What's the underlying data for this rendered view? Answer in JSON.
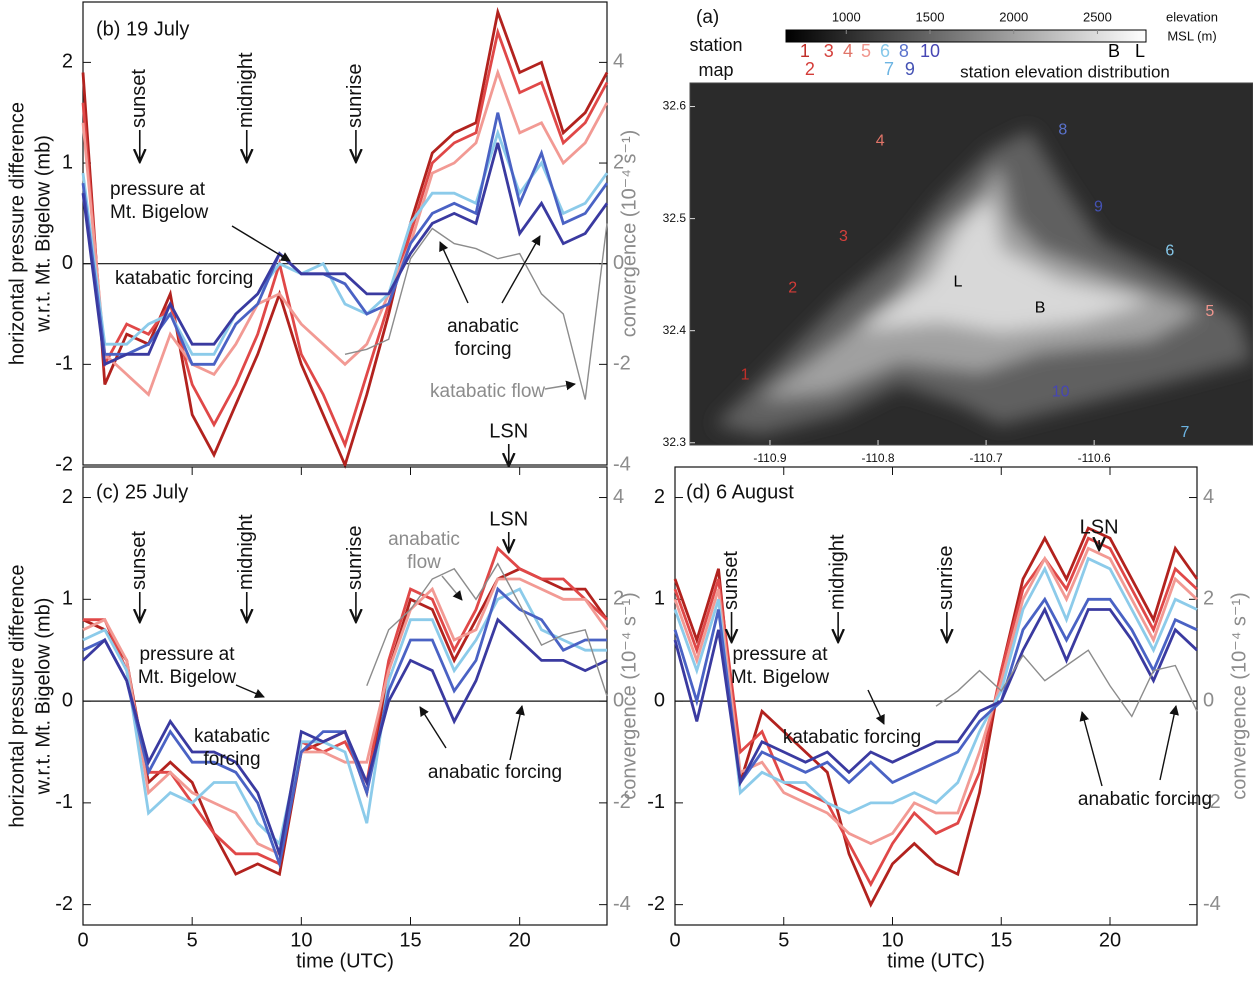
{
  "chart_data": [
    {
      "type": "map",
      "title": "(a)",
      "subtitle": [
        "station",
        "map"
      ],
      "xlim": [
        -110.974,
        -110.453
      ],
      "ylim": [
        32.298,
        32.621
      ],
      "xticks": [
        -110.9,
        -110.8,
        -110.7,
        -110.6
      ],
      "yticks": [
        32.3,
        32.4,
        32.5,
        32.6
      ],
      "colorbar": {
        "lim": [
          640,
          2790
        ],
        "ticks": [
          1000,
          1500,
          2000,
          2500
        ],
        "label": [
          "elevation",
          "MSL (m)"
        ]
      },
      "distribution_label": "station elevation distribution",
      "stations": [
        {
          "label": "1",
          "lon": -110.923,
          "lat": 32.36,
          "elevation": 753,
          "color": "#c0302a"
        },
        {
          "label": "2",
          "lon": -110.879,
          "lat": 32.438,
          "elevation": 783,
          "color": "#d43c38"
        },
        {
          "label": "3",
          "lon": -110.832,
          "lat": 32.484,
          "elevation": 895,
          "color": "#d4403c"
        },
        {
          "label": "4",
          "lon": -110.798,
          "lat": 32.569,
          "elevation": 1010,
          "color": "#e07468"
        },
        {
          "label": "5",
          "lon": -110.493,
          "lat": 32.417,
          "elevation": 1118,
          "color": "#f0968e"
        },
        {
          "label": "6",
          "lon": -110.53,
          "lat": 32.471,
          "elevation": 1231,
          "color": "#86c8ea"
        },
        {
          "label": "7",
          "lon": -110.516,
          "lat": 32.309,
          "elevation": 1255,
          "color": "#6cb4e2"
        },
        {
          "label": "8",
          "lon": -110.629,
          "lat": 32.579,
          "elevation": 1344,
          "color": "#5a72cc"
        },
        {
          "label": "9",
          "lon": -110.596,
          "lat": 32.51,
          "elevation": 1380,
          "color": "#4452b4"
        },
        {
          "label": "10",
          "lon": -110.631,
          "lat": 32.345,
          "elevation": 1500,
          "color": "#4646b4"
        },
        {
          "label": "B",
          "lon": -110.65,
          "lat": 32.42,
          "elevation": 2599,
          "color": "#000000"
        },
        {
          "label": "L",
          "lon": -110.726,
          "lat": 32.443,
          "elevation": 2754,
          "color": "#000000"
        }
      ]
    },
    {
      "type": "line",
      "title": "(b) 19 July",
      "y_label": [
        "horizontal pressure difference",
        "w.r.t. Mt. Bigelow (mb)"
      ],
      "y2_label": "convergence (10⁻⁴ s⁻¹)",
      "xlim": [
        0,
        24
      ],
      "ylim": [
        -2,
        2.6
      ],
      "yticks": [
        -2,
        -1,
        0,
        1,
        2
      ],
      "y2lim": [
        -4,
        5.2
      ],
      "y2ticks": [
        -4,
        -2,
        0,
        2,
        4
      ],
      "x": [
        0,
        1,
        2,
        3,
        4,
        5,
        6,
        7,
        8,
        9,
        10,
        11,
        12,
        13,
        14,
        15,
        16,
        17,
        18,
        19,
        20,
        21,
        22,
        23,
        24
      ],
      "series": [
        {
          "color": "#b2221e",
          "values": [
            1.9,
            -1.2,
            -0.7,
            -0.8,
            -0.3,
            -1.5,
            -1.9,
            -1.4,
            -0.9,
            -0.3,
            -1.0,
            -1.5,
            -2.0,
            -1.3,
            -0.5,
            0.4,
            1.1,
            1.3,
            1.4,
            2.5,
            1.9,
            2.0,
            1.3,
            1.5,
            1.9
          ]
        },
        {
          "color": "#e04848",
          "values": [
            1.6,
            -1.0,
            -0.6,
            -0.7,
            -0.4,
            -1.2,
            -1.6,
            -1.2,
            -0.7,
            0.0,
            -0.9,
            -1.3,
            -1.8,
            -1.1,
            -0.4,
            0.3,
            1.0,
            1.2,
            1.3,
            2.3,
            1.7,
            1.8,
            1.2,
            1.4,
            1.8
          ]
        },
        {
          "color": "#f29a94",
          "values": [
            1.4,
            -0.9,
            -1.1,
            -1.3,
            -0.7,
            -1.0,
            -1.1,
            -0.8,
            -0.4,
            -0.3,
            -0.6,
            -0.8,
            -1.0,
            -0.8,
            -0.3,
            0.2,
            0.9,
            1.0,
            1.2,
            1.9,
            1.3,
            1.4,
            1.0,
            1.2,
            1.6
          ]
        },
        {
          "color": "#8ccbea",
          "values": [
            0.9,
            -0.8,
            -0.8,
            -0.6,
            -0.5,
            -0.9,
            -0.9,
            -0.5,
            -0.3,
            0.0,
            -0.1,
            0.0,
            -0.4,
            -0.5,
            -0.3,
            0.4,
            0.7,
            0.7,
            0.6,
            1.3,
            0.7,
            1.0,
            0.5,
            0.6,
            0.9
          ]
        },
        {
          "color": "#4a62c4",
          "values": [
            0.8,
            -0.9,
            -0.9,
            -0.8,
            -0.5,
            -1.0,
            -1.0,
            -0.6,
            -0.4,
            0.1,
            -0.1,
            -0.1,
            -0.2,
            -0.5,
            -0.4,
            0.2,
            0.5,
            0.6,
            0.5,
            1.5,
            0.6,
            1.1,
            0.4,
            0.5,
            0.8
          ]
        },
        {
          "color": "#3a3aa0",
          "values": [
            0.7,
            -1.0,
            -0.9,
            -0.9,
            -0.4,
            -0.8,
            -0.8,
            -0.5,
            -0.3,
            0.1,
            -0.1,
            -0.1,
            -0.1,
            -0.3,
            -0.3,
            0.1,
            0.4,
            0.5,
            0.4,
            1.2,
            0.3,
            0.6,
            0.2,
            0.3,
            0.6
          ]
        },
        {
          "color": "#8c8c8c",
          "axis": "y2",
          "values": [
            null,
            null,
            null,
            null,
            null,
            null,
            null,
            null,
            null,
            null,
            null,
            null,
            -1.8,
            -1.7,
            -1.5,
            0.1,
            0.7,
            0.4,
            0.3,
            0.1,
            0.2,
            -0.6,
            -1.0,
            -2.7,
            0.8
          ]
        }
      ],
      "events": [
        {
          "label": "sunset",
          "x": 2.6,
          "vertical": true
        },
        {
          "label": "midnight",
          "x": 7.5,
          "vertical": true
        },
        {
          "label": "sunrise",
          "x": 12.5,
          "vertical": true
        },
        {
          "label": "LSN",
          "x": 19.5,
          "vertical": false
        }
      ],
      "annotations": [
        {
          "lines": [
            "pressure at",
            "Mt. Bigelow"
          ]
        },
        {
          "lines": [
            "katabatic forcing"
          ]
        },
        {
          "lines": [
            "anabatic",
            "forcing"
          ]
        },
        {
          "lines": [
            "katabatic flow"
          ],
          "color": "#8c8c8c"
        }
      ]
    },
    {
      "type": "line",
      "title": "(c) 25 July",
      "y_label": [
        "horizontal pressure difference",
        "w.r.t. Mt. Bigelow (mb)"
      ],
      "y2_label": "convergence (10⁻⁴ s⁻¹)",
      "x_label": "time (UTC)",
      "xlim": [
        0,
        24
      ],
      "xticks": [
        0,
        5,
        10,
        15,
        20
      ],
      "ylim": [
        -2.2,
        2.3
      ],
      "yticks": [
        -2,
        -1,
        0,
        1,
        2
      ],
      "y2lim": [
        -4.4,
        4.6
      ],
      "y2ticks": [
        -4,
        -2,
        0,
        2,
        4
      ],
      "x": [
        0,
        1,
        2,
        3,
        4,
        5,
        6,
        7,
        8,
        9,
        10,
        11,
        12,
        13,
        14,
        15,
        16,
        17,
        18,
        19,
        20,
        21,
        22,
        23,
        24
      ],
      "series": [
        {
          "color": "#b2221e",
          "values": [
            0.8,
            0.7,
            0.4,
            -0.8,
            -0.6,
            -0.8,
            -1.3,
            -1.7,
            -1.6,
            -1.7,
            -0.5,
            -0.4,
            -0.3,
            -0.9,
            0.3,
            1.0,
            0.9,
            0.4,
            0.8,
            1.2,
            1.3,
            1.2,
            1.1,
            1.1,
            0.8
          ]
        },
        {
          "color": "#e04848",
          "values": [
            0.8,
            0.8,
            0.3,
            -0.7,
            -0.7,
            -1.0,
            -1.3,
            -1.5,
            -1.5,
            -1.6,
            -0.4,
            -0.5,
            -0.4,
            -0.8,
            0.4,
            1.1,
            1.0,
            0.5,
            0.9,
            1.5,
            1.3,
            1.2,
            1.2,
            1.0,
            0.8
          ]
        },
        {
          "color": "#f29a94",
          "values": [
            0.7,
            0.8,
            0.4,
            -0.9,
            -0.7,
            -0.9,
            -1.0,
            -1.1,
            -1.4,
            -1.5,
            -0.5,
            -0.5,
            -0.6,
            -0.6,
            0.3,
            0.9,
            1.1,
            0.6,
            0.7,
            1.2,
            1.2,
            1.1,
            1.0,
            1.0,
            0.7
          ]
        },
        {
          "color": "#8ccbea",
          "values": [
            0.6,
            0.7,
            0.3,
            -1.1,
            -0.9,
            -1.0,
            -0.8,
            -0.8,
            -1.2,
            -1.4,
            -0.4,
            -0.4,
            -0.5,
            -1.2,
            0.2,
            0.8,
            0.8,
            0.3,
            0.6,
            1.0,
            1.1,
            0.7,
            0.6,
            0.5,
            0.5
          ]
        },
        {
          "color": "#4a62c4",
          "values": [
            0.5,
            0.6,
            0.2,
            -0.7,
            -0.3,
            -0.6,
            -0.6,
            -0.7,
            -1.0,
            -1.6,
            -0.5,
            -0.3,
            -0.3,
            -0.9,
            0.1,
            0.6,
            0.6,
            0.1,
            0.4,
            1.1,
            0.9,
            0.8,
            0.5,
            0.6,
            0.6
          ]
        },
        {
          "color": "#3a3aa0",
          "values": [
            0.4,
            0.6,
            0.2,
            -0.6,
            -0.2,
            -0.5,
            -0.5,
            -0.6,
            -0.9,
            -1.5,
            -0.3,
            -0.4,
            -0.3,
            -0.8,
            0.0,
            0.4,
            0.3,
            -0.2,
            0.2,
            0.8,
            0.6,
            0.4,
            0.4,
            0.3,
            0.4
          ]
        },
        {
          "color": "#8c8c8c",
          "axis": "y2",
          "values": [
            null,
            null,
            null,
            null,
            null,
            null,
            null,
            null,
            null,
            null,
            null,
            null,
            null,
            0.3,
            1.4,
            1.8,
            2.4,
            2.6,
            2.0,
            2.7,
            1.9,
            1.1,
            1.3,
            1.4,
            0.1
          ]
        }
      ],
      "events": [
        {
          "label": "sunset",
          "x": 2.6,
          "vertical": true
        },
        {
          "label": "midnight",
          "x": 7.5,
          "vertical": true
        },
        {
          "label": "sunrise",
          "x": 12.5,
          "vertical": true
        },
        {
          "label": "LSN",
          "x": 19.5,
          "vertical": false
        }
      ],
      "annotations": [
        {
          "lines": [
            "anabatic",
            "flow"
          ],
          "color": "#8c8c8c"
        },
        {
          "lines": [
            "pressure at",
            "Mt. Bigelow"
          ]
        },
        {
          "lines": [
            "katabatic",
            "forcing"
          ]
        },
        {
          "lines": [
            "anabatic forcing"
          ]
        }
      ]
    },
    {
      "type": "line",
      "title": "(d) 6 August",
      "y2_label": "convergence (10⁻⁴ s⁻¹)",
      "x_label": "time (UTC)",
      "xlim": [
        0,
        24
      ],
      "xticks": [
        0,
        5,
        10,
        15,
        20
      ],
      "ylim": [
        -2.2,
        2.3
      ],
      "yticks": [
        -2,
        -1,
        0,
        1,
        2
      ],
      "y2lim": [
        -4.4,
        4.6
      ],
      "y2ticks": [
        -4,
        -2,
        0,
        2,
        4
      ],
      "x": [
        0,
        1,
        2,
        3,
        4,
        5,
        6,
        7,
        8,
        9,
        10,
        11,
        12,
        13,
        14,
        15,
        16,
        17,
        18,
        19,
        20,
        21,
        22,
        23,
        24
      ],
      "series": [
        {
          "color": "#b2221e",
          "values": [
            1.2,
            0.6,
            1.3,
            -0.8,
            -0.1,
            -0.3,
            -0.5,
            -0.7,
            -1.5,
            -2.0,
            -1.6,
            -1.4,
            -1.6,
            -1.7,
            -0.9,
            0.3,
            1.2,
            1.6,
            1.2,
            1.7,
            1.6,
            1.2,
            0.8,
            1.5,
            1.2
          ]
        },
        {
          "color": "#e04848",
          "values": [
            1.1,
            0.5,
            1.2,
            -0.5,
            -0.3,
            -0.8,
            -0.9,
            -1.0,
            -1.4,
            -1.8,
            -1.4,
            -1.1,
            -1.3,
            -1.2,
            -0.7,
            0.3,
            1.1,
            1.4,
            1.1,
            1.6,
            1.5,
            1.1,
            0.7,
            1.3,
            1.1
          ]
        },
        {
          "color": "#f29a94",
          "values": [
            1.0,
            0.4,
            1.1,
            -0.7,
            -0.6,
            -0.9,
            -1.0,
            -1.1,
            -1.3,
            -1.4,
            -1.3,
            -1.0,
            -1.1,
            -1.1,
            -0.5,
            0.2,
            1.0,
            1.4,
            1.0,
            1.5,
            1.4,
            1.0,
            0.6,
            1.2,
            1.0
          ]
        },
        {
          "color": "#8ccbea",
          "values": [
            0.9,
            0.3,
            1.0,
            -0.9,
            -0.7,
            -0.8,
            -0.8,
            -1.0,
            -1.1,
            -1.0,
            -1.0,
            -0.9,
            -1.0,
            -0.8,
            -0.3,
            0.1,
            0.9,
            1.3,
            0.8,
            1.4,
            1.3,
            0.9,
            0.5,
            1.0,
            0.9
          ]
        },
        {
          "color": "#4a62c4",
          "values": [
            0.7,
            0.0,
            0.9,
            -0.8,
            -0.5,
            -0.6,
            -0.7,
            -0.6,
            -0.8,
            -0.6,
            -0.8,
            -0.7,
            -0.6,
            -0.5,
            -0.2,
            0.0,
            0.7,
            1.0,
            0.6,
            1.0,
            1.0,
            0.7,
            0.3,
            0.8,
            0.7
          ]
        },
        {
          "color": "#3a3aa0",
          "values": [
            0.6,
            -0.2,
            0.7,
            -0.8,
            -0.4,
            -0.5,
            -0.6,
            -0.5,
            -0.7,
            -0.5,
            -0.6,
            -0.5,
            -0.4,
            -0.4,
            -0.1,
            0.0,
            0.5,
            0.9,
            0.4,
            0.9,
            0.9,
            0.6,
            0.2,
            0.7,
            0.5
          ]
        },
        {
          "color": "#8c8c8c",
          "axis": "y2",
          "values": [
            null,
            null,
            null,
            null,
            null,
            null,
            null,
            null,
            null,
            null,
            null,
            null,
            -0.1,
            0.2,
            0.6,
            0.2,
            0.9,
            0.4,
            0.7,
            1.0,
            0.3,
            -0.3,
            0.6,
            0.7,
            -0.2
          ]
        }
      ],
      "events": [
        {
          "label": "sunset",
          "x": 2.6,
          "vertical": true
        },
        {
          "label": "midnight",
          "x": 7.5,
          "vertical": true
        },
        {
          "label": "sunrise",
          "x": 12.5,
          "vertical": true
        },
        {
          "label": "LSN",
          "x": 19.5,
          "vertical": false
        }
      ],
      "annotations": [
        {
          "lines": [
            "pressure at",
            "Mt. Bigelow"
          ]
        },
        {
          "lines": [
            "katabatic forcing"
          ]
        },
        {
          "lines": [
            "anabatic forcing"
          ]
        }
      ]
    }
  ]
}
